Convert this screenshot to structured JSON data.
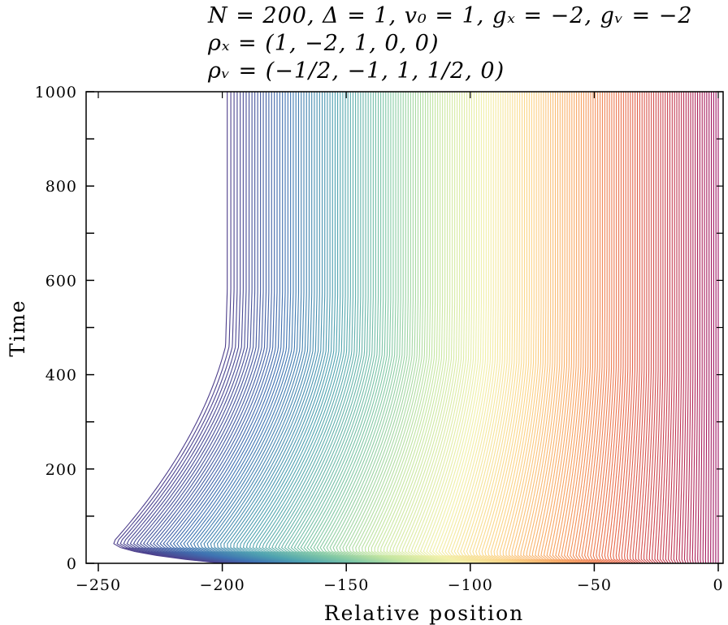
{
  "chart_data": {
    "type": "line",
    "title_lines": [
      "N = 200, Δ = 1, v₀ = 1, gₓ = −2, gᵥ = −2",
      "ρₓ = (1, −2, 1, 0, 0)",
      "ρᵥ = (−1/2, −1, 1, 1/2, 0)"
    ],
    "xlabel": "Relative position",
    "ylabel": "Time",
    "xlim": [
      -253,
      0
    ],
    "ylim": [
      0,
      1000
    ],
    "x_ticks": [
      -250,
      -200,
      -150,
      -100,
      -50,
      0
    ],
    "x_tick_labels": [
      "−250",
      "−200",
      "−150",
      "−100",
      "−50",
      "0"
    ],
    "y_ticks": [
      0,
      200,
      400,
      600,
      800,
      1000
    ],
    "y_tick_labels": [
      "0",
      "200",
      "400",
      "600",
      "800",
      "1000"
    ],
    "grid": false,
    "colormap": "spectral",
    "colormap_stops": [
      "#4e3f8c",
      "#3f72b2",
      "#4fa3b0",
      "#7fc7a5",
      "#c5e6a1",
      "#f2f0a8",
      "#fcd385",
      "#f8a15e",
      "#e86a4a",
      "#c53a4f",
      "#9a0e5f"
    ],
    "n_trajectories": 200,
    "series_description": "200 vehicle trajectories; vehicles start between x≈-200 and x≈0 at t=0, are pushed left to x≈-245 (first vehicle) by t≈45, then relax rightward; final positions at t=1000 range from x≈-198 (first) to x≈0 (last).",
    "keypoints_first_vehicle": [
      [
        -200,
        0
      ],
      [
        -244,
        45
      ],
      [
        -211,
        400
      ],
      [
        -203,
        460
      ],
      [
        -202,
        1000
      ]
    ],
    "keypoints_last_vehicle": [
      [
        0,
        0
      ],
      [
        0,
        1000
      ]
    ]
  }
}
